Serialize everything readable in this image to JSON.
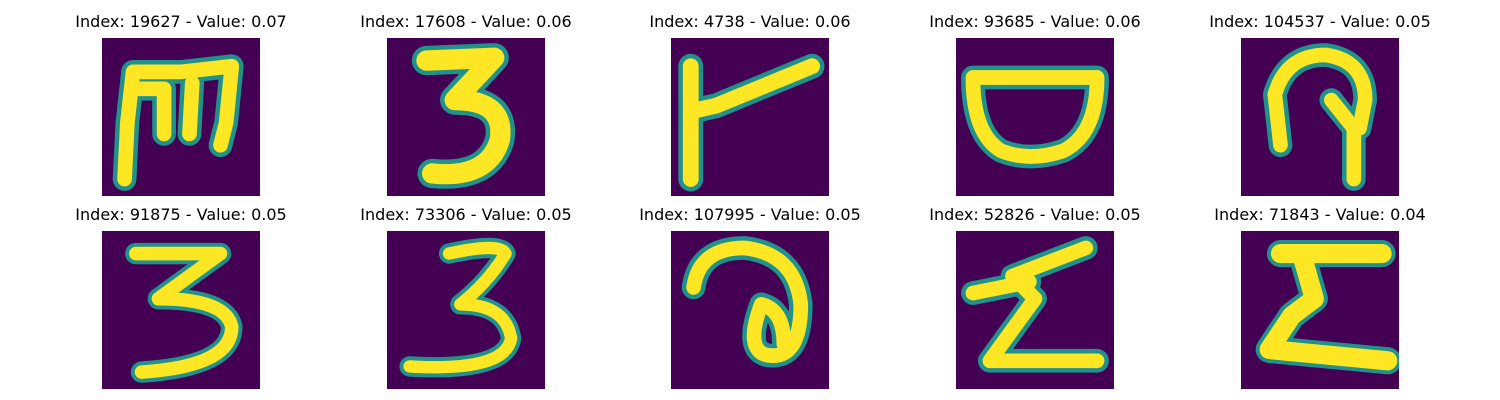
{
  "background": "#440154",
  "foreground": "#fde725",
  "edge": "#21918c",
  "panels": [
    {
      "title": "Index: 19627 - Value: 0.07",
      "glyph": "m-shape"
    },
    {
      "title": "Index: 17608 - Value: 0.06",
      "glyph": "three-bold"
    },
    {
      "title": "Index: 4738 - Value: 0.06",
      "glyph": "flag-shape"
    },
    {
      "title": "Index: 93685 - Value: 0.06",
      "glyph": "bowl-shape"
    },
    {
      "title": "Index: 104537 - Value: 0.05",
      "glyph": "hook-shape"
    },
    {
      "title": "Index: 91875 - Value: 0.05",
      "glyph": "three-thin"
    },
    {
      "title": "Index: 73306 - Value: 0.05",
      "glyph": "three-thin-2"
    },
    {
      "title": "Index: 107995 - Value: 0.05",
      "glyph": "spiral-shape"
    },
    {
      "title": "Index: 52826 - Value: 0.05",
      "glyph": "sigma-shape"
    },
    {
      "title": "Index: 71843 - Value: 0.04",
      "glyph": "sigma-bold"
    }
  ]
}
